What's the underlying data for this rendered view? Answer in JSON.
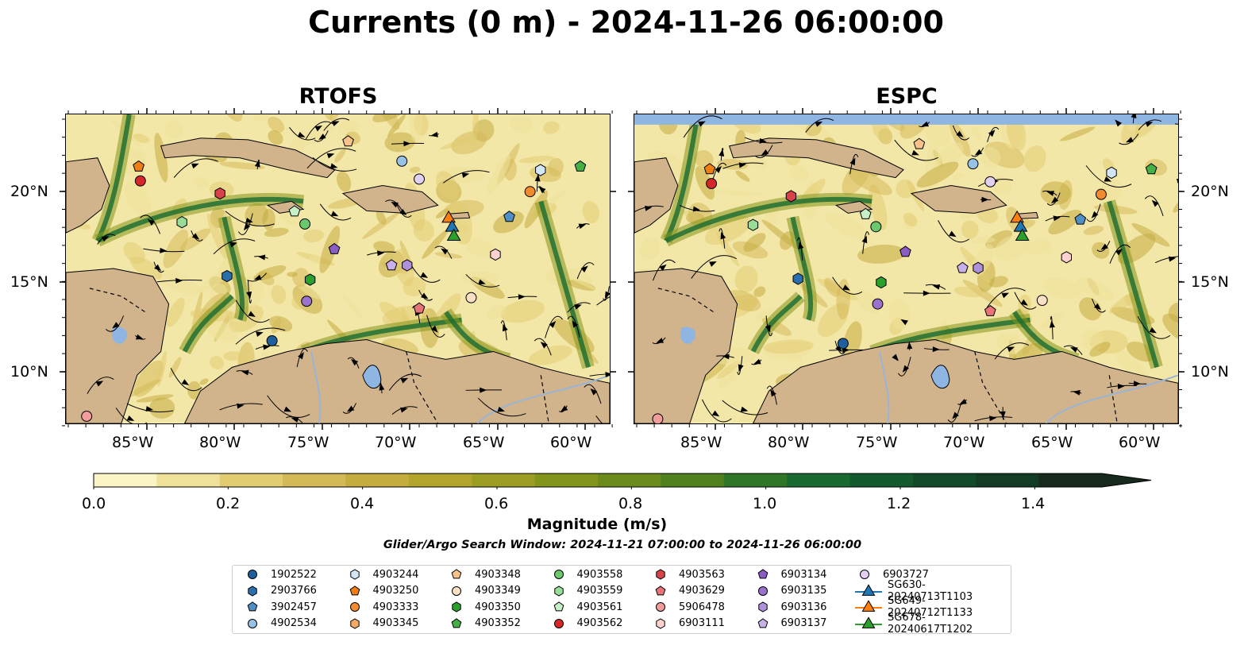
{
  "title": "Currents (0 m) - 2024-11-26 06:00:00",
  "panels": [
    {
      "id": "rtofs",
      "title": "RTOFS"
    },
    {
      "id": "espc",
      "title": "ESPC"
    }
  ],
  "x_ticks": [
    "85°W",
    "80°W",
    "75°W",
    "70°W",
    "65°W",
    "60°W"
  ],
  "y_ticks": [
    "20°N",
    "15°N",
    "10°N"
  ],
  "colorbar": {
    "label": "Magnitude (m/s)",
    "ticks": [
      "0.0",
      "0.2",
      "0.4",
      "0.6",
      "0.8",
      "1.0",
      "1.2",
      "1.4"
    ],
    "range": [
      0,
      1.5
    ],
    "extend": "max",
    "colors": [
      "#fbf5c6",
      "#efe19a",
      "#e2cc72",
      "#d3b957",
      "#c4ac3f",
      "#b3a42c",
      "#9c9e23",
      "#83951c",
      "#6b8b1c",
      "#4f811e",
      "#2f7628",
      "#196a30",
      "#145a2e",
      "#134a29",
      "#143b24",
      "#16291c"
    ]
  },
  "search_window": "Glider/Argo Search Window: 2024-11-21 07:00:00 to 2024-11-26 06:00:00",
  "colors": {
    "land": "#d2b48c",
    "lake": "#8fb5e3",
    "river": "#9ab4d8"
  },
  "legend": [
    {
      "label": "1902522",
      "marker": "circle",
      "color": "#1f5f9e"
    },
    {
      "label": "2903766",
      "marker": "hexagon",
      "color": "#2a6fad"
    },
    {
      "label": "3902457",
      "marker": "pentagon",
      "color": "#4f8fc6"
    },
    {
      "label": "4902534",
      "marker": "circle",
      "color": "#98c1e6"
    },
    {
      "label": "4903244",
      "marker": "hexagon",
      "color": "#d2e6f7"
    },
    {
      "label": "4903250",
      "marker": "pentagon",
      "color": "#f07f13"
    },
    {
      "label": "4903333",
      "marker": "circle",
      "color": "#f28b30"
    },
    {
      "label": "4903345",
      "marker": "hexagon",
      "color": "#f7aa63"
    },
    {
      "label": "4903348",
      "marker": "pentagon",
      "color": "#f8c28a"
    },
    {
      "label": "4903349",
      "marker": "circle",
      "color": "#fbe0c4"
    },
    {
      "label": "4903350",
      "marker": "hexagon",
      "color": "#2ca02c"
    },
    {
      "label": "4903352",
      "marker": "pentagon",
      "color": "#45b045"
    },
    {
      "label": "4903558",
      "marker": "circle",
      "color": "#6cc86c"
    },
    {
      "label": "4903559",
      "marker": "hexagon",
      "color": "#98dc98"
    },
    {
      "label": "4903561",
      "marker": "pentagon",
      "color": "#c6f0c6"
    },
    {
      "label": "4903562",
      "marker": "circle",
      "color": "#d62728"
    },
    {
      "label": "4903563",
      "marker": "hexagon",
      "color": "#d8424a"
    },
    {
      "label": "4903629",
      "marker": "pentagon",
      "color": "#e8747a"
    },
    {
      "label": "5906478",
      "marker": "circle",
      "color": "#f29c9c"
    },
    {
      "label": "6903111",
      "marker": "hexagon",
      "color": "#fbd2d0"
    },
    {
      "label": "6903134",
      "marker": "pentagon",
      "color": "#8a5cc4"
    },
    {
      "label": "6903135",
      "marker": "circle",
      "color": "#9a72cc"
    },
    {
      "label": "6903136",
      "marker": "hexagon",
      "color": "#ae90db"
    },
    {
      "label": "6903137",
      "marker": "pentagon",
      "color": "#c9b0e8"
    },
    {
      "label": "6903727",
      "marker": "circle",
      "color": "#e2d0f2"
    },
    {
      "label": "SG630-20240713T1103",
      "marker": "triangle",
      "color": "#1f77b4"
    },
    {
      "label": "SG649-20240712T1133",
      "marker": "triangle",
      "color": "#ff7f0e"
    },
    {
      "label": "SG678-20240617T1202",
      "marker": "triangle",
      "color": "#2ca02c"
    }
  ],
  "floats": [
    {
      "label": "4903250",
      "lon": -85.1,
      "lat": 21.4
    },
    {
      "label": "4903562",
      "lon": -85.0,
      "lat": 20.6
    },
    {
      "label": "4903563",
      "lon": -80.4,
      "lat": 19.9
    },
    {
      "label": "4903559",
      "lon": -82.6,
      "lat": 18.3
    },
    {
      "label": "4903561",
      "lon": -76.1,
      "lat": 18.9
    },
    {
      "label": "4903558",
      "lon": -75.5,
      "lat": 18.2
    },
    {
      "label": "4903348",
      "lon": -73.0,
      "lat": 22.8
    },
    {
      "label": "4902534",
      "lon": -69.9,
      "lat": 21.7
    },
    {
      "label": "6903727",
      "lon": -68.9,
      "lat": 20.7
    },
    {
      "label": "4903244",
      "lon": -61.9,
      "lat": 21.2
    },
    {
      "label": "4903352",
      "lon": -59.6,
      "lat": 21.4
    },
    {
      "label": "4903333",
      "lon": -62.5,
      "lat": 20.0
    },
    {
      "label": "3902457",
      "lon": -63.7,
      "lat": 18.6
    },
    {
      "label": "6903134",
      "lon": -73.8,
      "lat": 16.8
    },
    {
      "label": "6903137",
      "lon": -70.5,
      "lat": 15.9
    },
    {
      "label": "6903136",
      "lon": -69.6,
      "lat": 15.9
    },
    {
      "label": "6903111",
      "lon": -64.5,
      "lat": 16.5
    },
    {
      "label": "2903766",
      "lon": -80.0,
      "lat": 15.3
    },
    {
      "label": "4903350",
      "lon": -75.2,
      "lat": 15.1
    },
    {
      "label": "6903135",
      "lon": -75.4,
      "lat": 13.9
    },
    {
      "label": "4903349",
      "lon": -65.9,
      "lat": 14.1
    },
    {
      "label": "4903629",
      "lon": -68.9,
      "lat": 13.5
    },
    {
      "label": "1902522",
      "lon": -77.4,
      "lat": 11.7
    },
    {
      "label": "5906478",
      "lon": -88.1,
      "lat": 7.5
    }
  ],
  "gliders": [
    {
      "label": "SG649-20240712T1133",
      "lon": -67.2,
      "lat": 18.5
    },
    {
      "label": "SG630-20240713T1103",
      "lon": -67.0,
      "lat": 18.0
    },
    {
      "label": "SG678-20240617T1202",
      "lon": -66.9,
      "lat": 17.5
    }
  ]
}
